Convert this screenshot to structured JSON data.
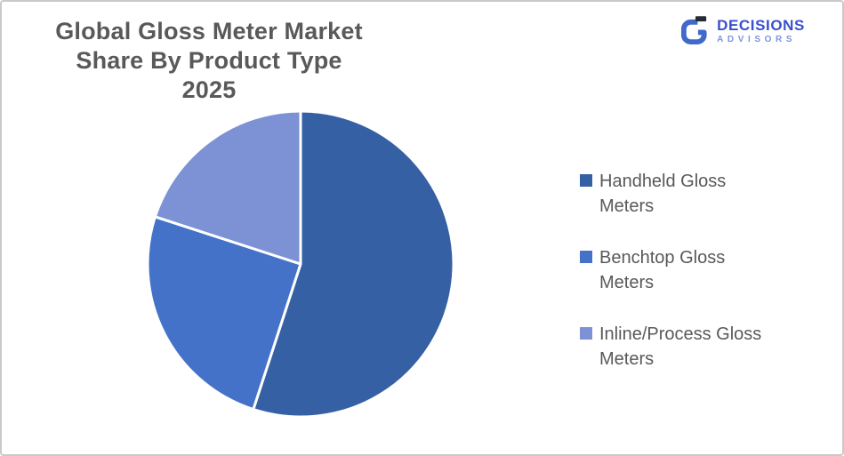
{
  "frame": {
    "background": "#FFFFFF",
    "border_color": "#C9C9C9"
  },
  "logo": {
    "brand": "DECISIONS",
    "sub_brand": "ADVISORS",
    "brand_color": "#3A50CC",
    "sub_brand_color": "#7D96E0",
    "mark_color": "#4169C9",
    "mark_accent_color": "#262B33"
  },
  "colors": {
    "title_text": "#595959",
    "legend_text": "#595959",
    "slice_separator": "#FFFFFF"
  },
  "chart_data": {
    "type": "pie",
    "title": "Global Gloss Meter Market Share By Product Type 2025",
    "units": "%",
    "total": 100,
    "start_angle_deg": 0,
    "direction": "clockwise",
    "legend_position": "right",
    "series": [
      {
        "name": "Handheld Gloss Meters",
        "value": 55,
        "color": "#3560A4"
      },
      {
        "name": "Benchtop Gloss Meters",
        "value": 25,
        "color": "#4472C8"
      },
      {
        "name": "Inline/Process Gloss Meters",
        "value": 20,
        "color": "#7D92D4"
      }
    ]
  }
}
